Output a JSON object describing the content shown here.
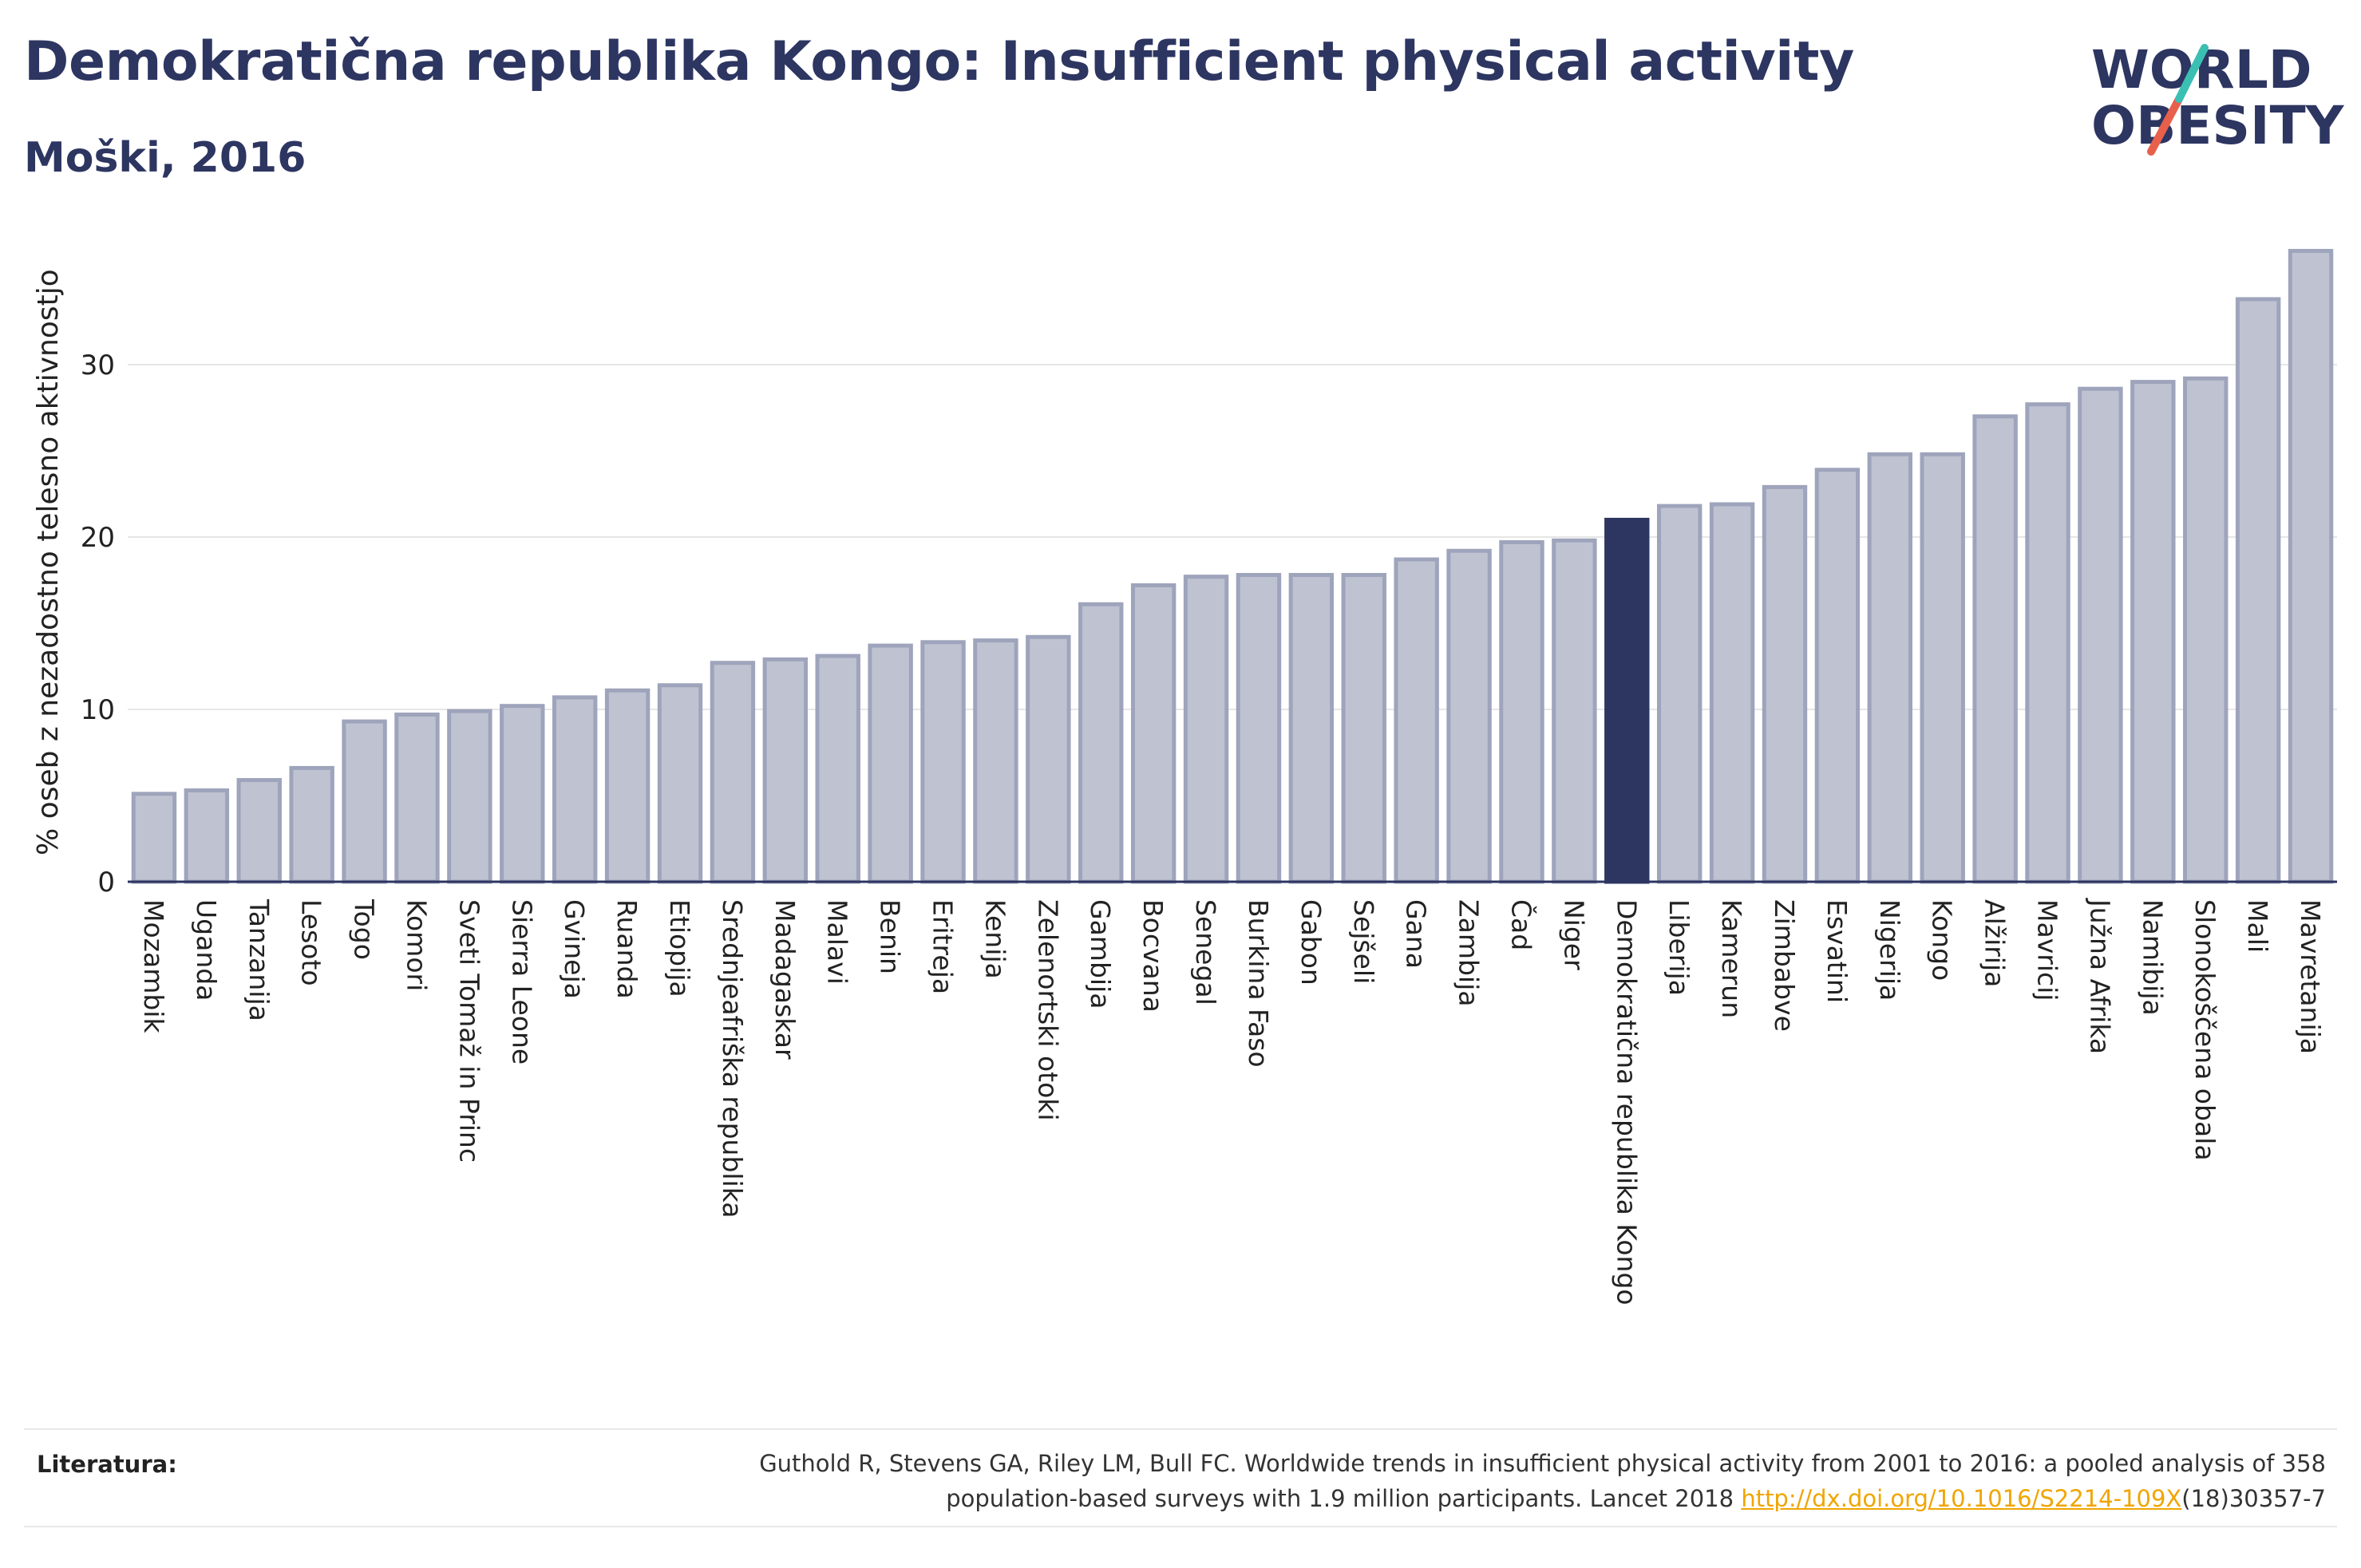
{
  "header": {
    "title": "Demokratična republika Kongo: Insufficient physical activity",
    "subtitle": "Moški, 2016"
  },
  "logo": {
    "line1": "WORLD",
    "line2": "OBESITY"
  },
  "colors": {
    "highlight": "#2d3561",
    "bar_fill": "#bfc3d1",
    "bar_stroke": "#9ea4bb",
    "text": "#2d3561",
    "logo_teal": "#3bbfb3",
    "logo_coral": "#e8604c",
    "link": "#f0a500"
  },
  "chart_data": {
    "type": "bar",
    "title": "Demokratična republika Kongo: Insufficient physical activity",
    "subtitle": "Moški, 2016",
    "xlabel": "",
    "ylabel": "% oseb z nezadostno telesno aktivnostjo",
    "ylim": [
      0,
      38
    ],
    "yticks": [
      0,
      10,
      20,
      30
    ],
    "grid": true,
    "highlight": "Demokratična republika Kongo",
    "categories": [
      "Mozambik",
      "Uganda",
      "Tanzanija",
      "Lesoto",
      "Togo",
      "Komori",
      "Sveti Tomaž in Princ",
      "Sierra Leone",
      "Gvineja",
      "Ruanda",
      "Etiopija",
      "Srednjeafriška republika",
      "Madagaskar",
      "Malavi",
      "Benin",
      "Eritreja",
      "Kenija",
      "Zelenortski otoki",
      "Gambija",
      "Bocvana",
      "Senegal",
      "Burkina Faso",
      "Gabon",
      "Sejšeli",
      "Gana",
      "Zambija",
      "Čad",
      "Niger",
      "Demokratična republika Kongo",
      "Liberija",
      "Kamerun",
      "Zimbabve",
      "Esvatini",
      "Nigerija",
      "Kongo",
      "Alžirija",
      "Mavricij",
      "Južna Afrika",
      "Namibija",
      "Slonokoščena obala",
      "Mali",
      "Mavretanija"
    ],
    "values": [
      5.1,
      5.3,
      5.9,
      6.6,
      9.3,
      9.7,
      9.9,
      10.2,
      10.7,
      11.1,
      11.4,
      12.7,
      12.9,
      13.1,
      13.7,
      13.9,
      14.0,
      14.2,
      16.1,
      17.2,
      17.7,
      17.8,
      17.8,
      17.8,
      18.7,
      19.2,
      19.7,
      19.8,
      21.0,
      21.8,
      21.9,
      22.9,
      23.9,
      24.8,
      24.8,
      27.0,
      27.7,
      28.6,
      29.0,
      29.2,
      33.8,
      36.6
    ]
  },
  "footer": {
    "label": "Literatura:",
    "line1": "Guthold R, Stevens GA, Riley LM, Bull FC. Worldwide trends in insufficient physical activity from 2001 to 2016: a pooled analysis of 358",
    "line2_prefix": "population-based surveys with 1.9 million participants. Lancet 2018 ",
    "link": "http://dx.doi.org/10.1016/S2214-109X",
    "line2_suffix": "(18)30357-7"
  }
}
